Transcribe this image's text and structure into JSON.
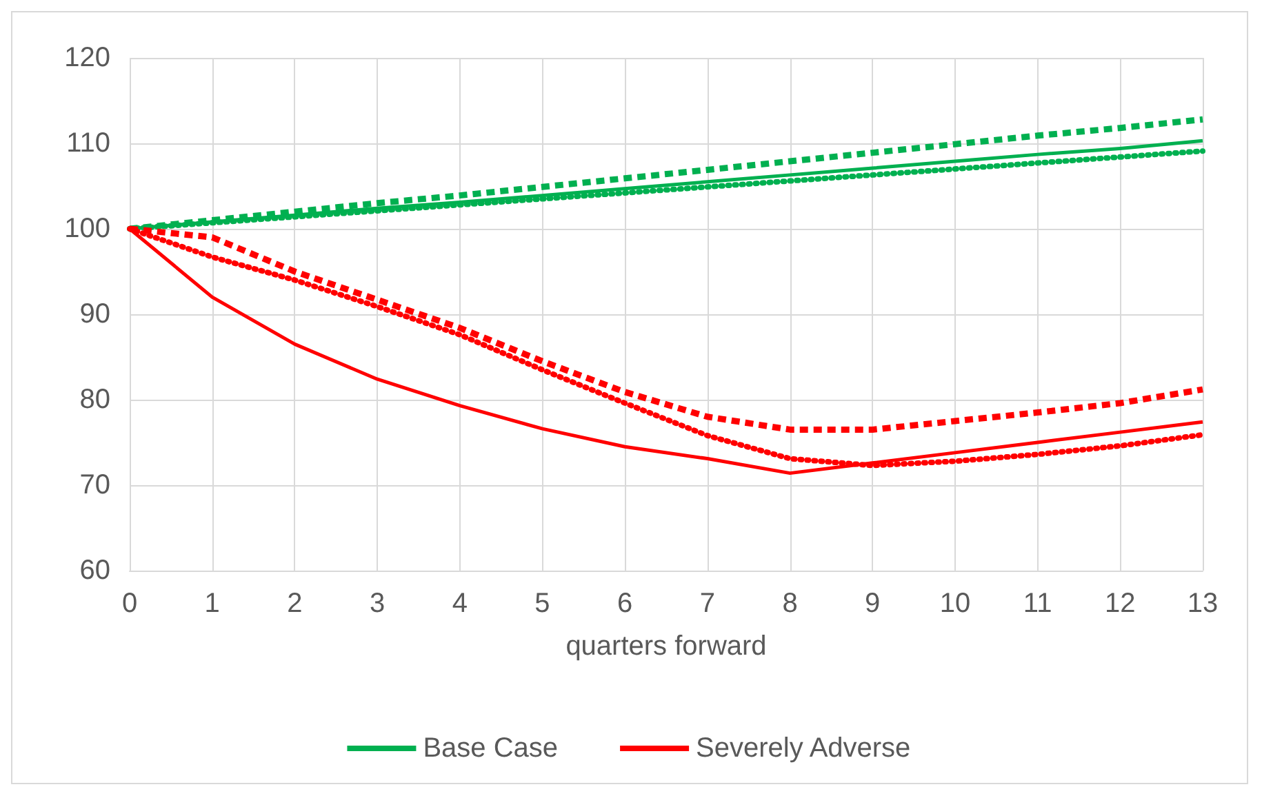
{
  "chart_data": {
    "type": "line",
    "xlabel": "quarters forward",
    "x": [
      0,
      1,
      2,
      3,
      4,
      5,
      6,
      7,
      8,
      9,
      10,
      11,
      12,
      13
    ],
    "xlim": [
      0,
      13
    ],
    "xticks": [
      0,
      1,
      2,
      3,
      4,
      5,
      6,
      7,
      8,
      9,
      10,
      11,
      12,
      13
    ],
    "ylim": [
      60,
      120
    ],
    "yticks": [
      60,
      70,
      80,
      90,
      100,
      110,
      120
    ],
    "grid": true,
    "legend": "bottom",
    "marker": "none",
    "series": [
      {
        "name": "Base Case",
        "color": "#00b050",
        "line_style": "solid",
        "values": [
          100,
          100.8,
          101.6,
          102.4,
          103.1,
          103.9,
          104.7,
          105.5,
          106.3,
          107.1,
          107.9,
          108.7,
          109.4,
          110.3
        ]
      },
      {
        "color": "#00b050",
        "line_style": "dashed",
        "values": [
          100,
          101,
          102,
          103,
          103.9,
          104.9,
          105.9,
          106.9,
          107.9,
          108.9,
          109.9,
          110.9,
          111.8,
          112.8
        ]
      },
      {
        "color": "#00b050",
        "line_style": "dotted",
        "values": [
          100,
          100.7,
          101.4,
          102.1,
          102.8,
          103.5,
          104.2,
          104.9,
          105.6,
          106.3,
          107,
          107.7,
          108.4,
          109.1
        ]
      },
      {
        "name": "Severely Adverse",
        "color": "#ff0000",
        "line_style": "solid",
        "values": [
          100,
          92,
          86.5,
          82.4,
          79.3,
          76.6,
          74.5,
          73.1,
          71.4,
          72.6,
          73.8,
          75,
          76.2,
          77.4
        ]
      },
      {
        "color": "#ff0000",
        "line_style": "dashed",
        "values": [
          100,
          99,
          95,
          91.7,
          88.4,
          84.5,
          80.9,
          78,
          76.5,
          76.5,
          77.5,
          78.5,
          79.6,
          81.2
        ]
      },
      {
        "color": "#ff0000",
        "line_style": "dotted",
        "values": [
          100,
          96.7,
          94,
          90.9,
          87.6,
          83.5,
          79.6,
          75.8,
          73.1,
          72.3,
          72.8,
          73.6,
          74.6,
          75.9
        ]
      }
    ]
  }
}
